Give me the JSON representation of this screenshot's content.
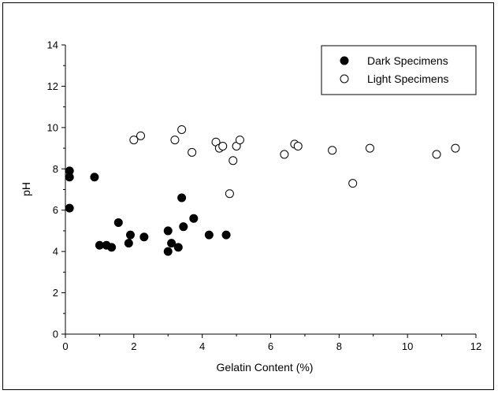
{
  "chart_data": {
    "type": "scatter",
    "title": "",
    "xlabel": "Gelatin Content (%)",
    "ylabel": "pH",
    "xlim": [
      0,
      12
    ],
    "ylim": [
      0,
      14
    ],
    "xticks": [
      0,
      2,
      4,
      6,
      8,
      10,
      12
    ],
    "yticks": [
      0,
      2,
      4,
      6,
      8,
      10,
      12,
      14
    ],
    "grid": false,
    "legend_position": "top-right",
    "series": [
      {
        "name": "Dark Specimens",
        "marker": "filled-circle",
        "color": "#000000",
        "points": [
          [
            0.12,
            7.9
          ],
          [
            0.12,
            7.6
          ],
          [
            0.12,
            6.1
          ],
          [
            0.85,
            7.6
          ],
          [
            1.0,
            4.3
          ],
          [
            1.2,
            4.3
          ],
          [
            1.35,
            4.2
          ],
          [
            1.55,
            5.4
          ],
          [
            1.85,
            4.4
          ],
          [
            1.9,
            4.8
          ],
          [
            2.3,
            4.7
          ],
          [
            3.0,
            5.0
          ],
          [
            3.0,
            4.0
          ],
          [
            3.1,
            4.4
          ],
          [
            3.3,
            4.2
          ],
          [
            3.4,
            6.6
          ],
          [
            3.45,
            5.2
          ],
          [
            3.75,
            5.6
          ],
          [
            4.2,
            4.8
          ],
          [
            4.7,
            4.8
          ]
        ]
      },
      {
        "name": "Light Specimens",
        "marker": "open-circle",
        "color": "#000000",
        "points": [
          [
            2.0,
            9.4
          ],
          [
            2.2,
            9.6
          ],
          [
            3.2,
            9.4
          ],
          [
            3.4,
            9.9
          ],
          [
            3.7,
            8.8
          ],
          [
            4.4,
            9.3
          ],
          [
            4.5,
            9.0
          ],
          [
            4.6,
            9.1
          ],
          [
            4.8,
            6.8
          ],
          [
            4.9,
            8.4
          ],
          [
            5.0,
            9.1
          ],
          [
            5.1,
            9.4
          ],
          [
            6.4,
            8.7
          ],
          [
            6.7,
            9.2
          ],
          [
            6.8,
            9.1
          ],
          [
            7.8,
            8.9
          ],
          [
            8.4,
            7.3
          ],
          [
            8.9,
            9.0
          ],
          [
            10.85,
            8.7
          ],
          [
            11.4,
            9.0
          ]
        ]
      }
    ]
  }
}
